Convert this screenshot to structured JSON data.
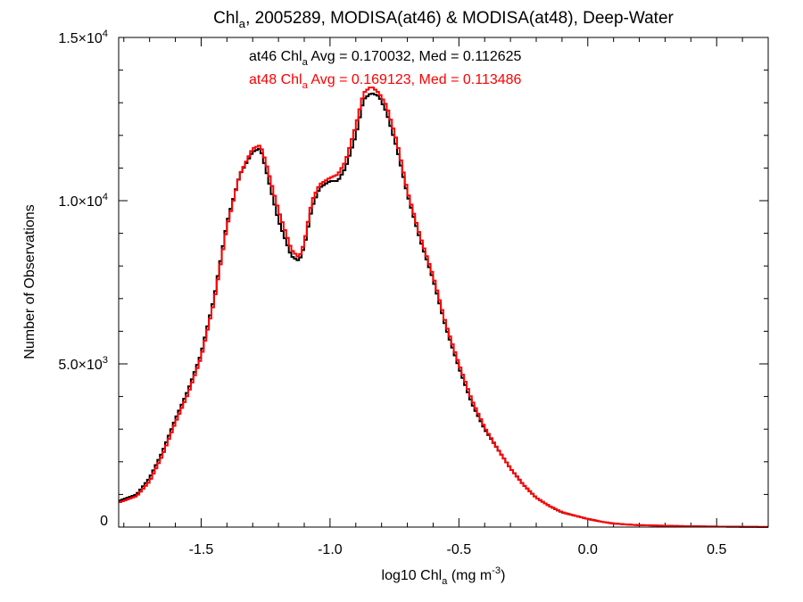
{
  "chart_data": {
    "type": "line",
    "step": true,
    "title": {
      "parts": [
        {
          "text": "Chl"
        },
        {
          "text": "a",
          "sub": true
        },
        {
          "text": ", 2005289, MODISA(at46) & MODISA(at48), Deep-Water"
        }
      ]
    },
    "xlabel": {
      "parts": [
        {
          "text": "log10 Chl"
        },
        {
          "text": "a",
          "sub": true
        },
        {
          "text": " (mg m"
        },
        {
          "text": "-3",
          "sup": true
        },
        {
          "text": ")"
        }
      ]
    },
    "ylabel": "Number of Observations",
    "xlim": [
      -1.82,
      0.7
    ],
    "ylim": [
      0,
      15000
    ],
    "xticks": [
      {
        "value": -1.5,
        "label": "-1.5"
      },
      {
        "value": -1.0,
        "label": "-1.0"
      },
      {
        "value": -0.5,
        "label": "-0.5"
      },
      {
        "value": 0.0,
        "label": "0.0"
      },
      {
        "value": 0.5,
        "label": "0.5"
      }
    ],
    "yticks": [
      {
        "value": 0,
        "mant": "0",
        "exp": ""
      },
      {
        "value": 5000,
        "mant": "5.0×10",
        "exp": "3"
      },
      {
        "value": 10000,
        "mant": "1.0×10",
        "exp": "4"
      },
      {
        "value": 15000,
        "mant": "1.5×10",
        "exp": "4"
      }
    ],
    "x_minor_step": 0.1,
    "y_minor_step": 1000,
    "annotations": [
      {
        "color": "#000000",
        "pre": "at46 Chl",
        "sub": "a",
        "post": " Avg = 0.170032, Med = 0.112625"
      },
      {
        "color": "#ff0000",
        "pre": "at48 Chl",
        "sub": "a",
        "post": " Avg = 0.169123, Med = 0.113486"
      }
    ],
    "series": [
      {
        "color": "#000000",
        "points": [
          [
            -1.82,
            800
          ],
          [
            -1.75,
            1000
          ],
          [
            -1.7,
            1500
          ],
          [
            -1.65,
            2300
          ],
          [
            -1.6,
            3300
          ],
          [
            -1.55,
            4200
          ],
          [
            -1.5,
            5300
          ],
          [
            -1.45,
            7000
          ],
          [
            -1.4,
            9300
          ],
          [
            -1.35,
            10800
          ],
          [
            -1.3,
            11500
          ],
          [
            -1.27,
            11600
          ],
          [
            -1.25,
            11000
          ],
          [
            -1.2,
            9400
          ],
          [
            -1.15,
            8300
          ],
          [
            -1.12,
            8150
          ],
          [
            -1.1,
            8600
          ],
          [
            -1.07,
            9800
          ],
          [
            -1.04,
            10400
          ],
          [
            -1.0,
            10600
          ],
          [
            -0.97,
            10600
          ],
          [
            -0.94,
            11000
          ],
          [
            -0.9,
            12000
          ],
          [
            -0.87,
            13100
          ],
          [
            -0.84,
            13300
          ],
          [
            -0.81,
            13200
          ],
          [
            -0.78,
            12700
          ],
          [
            -0.74,
            11600
          ],
          [
            -0.7,
            10200
          ],
          [
            -0.65,
            8800
          ],
          [
            -0.6,
            7600
          ],
          [
            -0.55,
            6100
          ],
          [
            -0.5,
            4900
          ],
          [
            -0.45,
            3800
          ],
          [
            -0.4,
            3000
          ],
          [
            -0.35,
            2400
          ],
          [
            -0.3,
            1800
          ],
          [
            -0.25,
            1300
          ],
          [
            -0.2,
            900
          ],
          [
            -0.15,
            650
          ],
          [
            -0.1,
            450
          ],
          [
            -0.05,
            350
          ],
          [
            0.0,
            250
          ],
          [
            0.05,
            170
          ],
          [
            0.1,
            110
          ],
          [
            0.15,
            80
          ],
          [
            0.2,
            60
          ],
          [
            0.3,
            40
          ],
          [
            0.4,
            25
          ],
          [
            0.5,
            15
          ],
          [
            0.6,
            8
          ],
          [
            0.7,
            3
          ]
        ]
      },
      {
        "color": "#ff0000",
        "points": [
          [
            -1.82,
            750
          ],
          [
            -1.75,
            950
          ],
          [
            -1.7,
            1400
          ],
          [
            -1.65,
            2200
          ],
          [
            -1.6,
            3200
          ],
          [
            -1.55,
            4100
          ],
          [
            -1.5,
            5200
          ],
          [
            -1.45,
            6900
          ],
          [
            -1.4,
            9200
          ],
          [
            -1.35,
            10800
          ],
          [
            -1.3,
            11600
          ],
          [
            -1.27,
            11700
          ],
          [
            -1.25,
            11200
          ],
          [
            -1.2,
            9700
          ],
          [
            -1.15,
            8500
          ],
          [
            -1.12,
            8250
          ],
          [
            -1.1,
            8700
          ],
          [
            -1.07,
            10000
          ],
          [
            -1.04,
            10500
          ],
          [
            -1.0,
            10700
          ],
          [
            -0.97,
            10800
          ],
          [
            -0.94,
            11200
          ],
          [
            -0.9,
            12300
          ],
          [
            -0.87,
            13300
          ],
          [
            -0.84,
            13500
          ],
          [
            -0.81,
            13300
          ],
          [
            -0.78,
            12900
          ],
          [
            -0.74,
            11800
          ],
          [
            -0.7,
            10300
          ],
          [
            -0.65,
            8900
          ],
          [
            -0.6,
            7700
          ],
          [
            -0.55,
            6200
          ],
          [
            -0.5,
            5000
          ],
          [
            -0.45,
            3900
          ],
          [
            -0.4,
            3050
          ],
          [
            -0.35,
            2400
          ],
          [
            -0.3,
            1800
          ],
          [
            -0.25,
            1300
          ],
          [
            -0.2,
            900
          ],
          [
            -0.15,
            650
          ],
          [
            -0.1,
            460
          ],
          [
            -0.05,
            350
          ],
          [
            0.0,
            250
          ],
          [
            0.05,
            170
          ],
          [
            0.1,
            110
          ],
          [
            0.15,
            80
          ],
          [
            0.2,
            60
          ],
          [
            0.3,
            40
          ],
          [
            0.4,
            25
          ],
          [
            0.5,
            15
          ],
          [
            0.6,
            8
          ],
          [
            0.7,
            3
          ]
        ]
      }
    ]
  }
}
